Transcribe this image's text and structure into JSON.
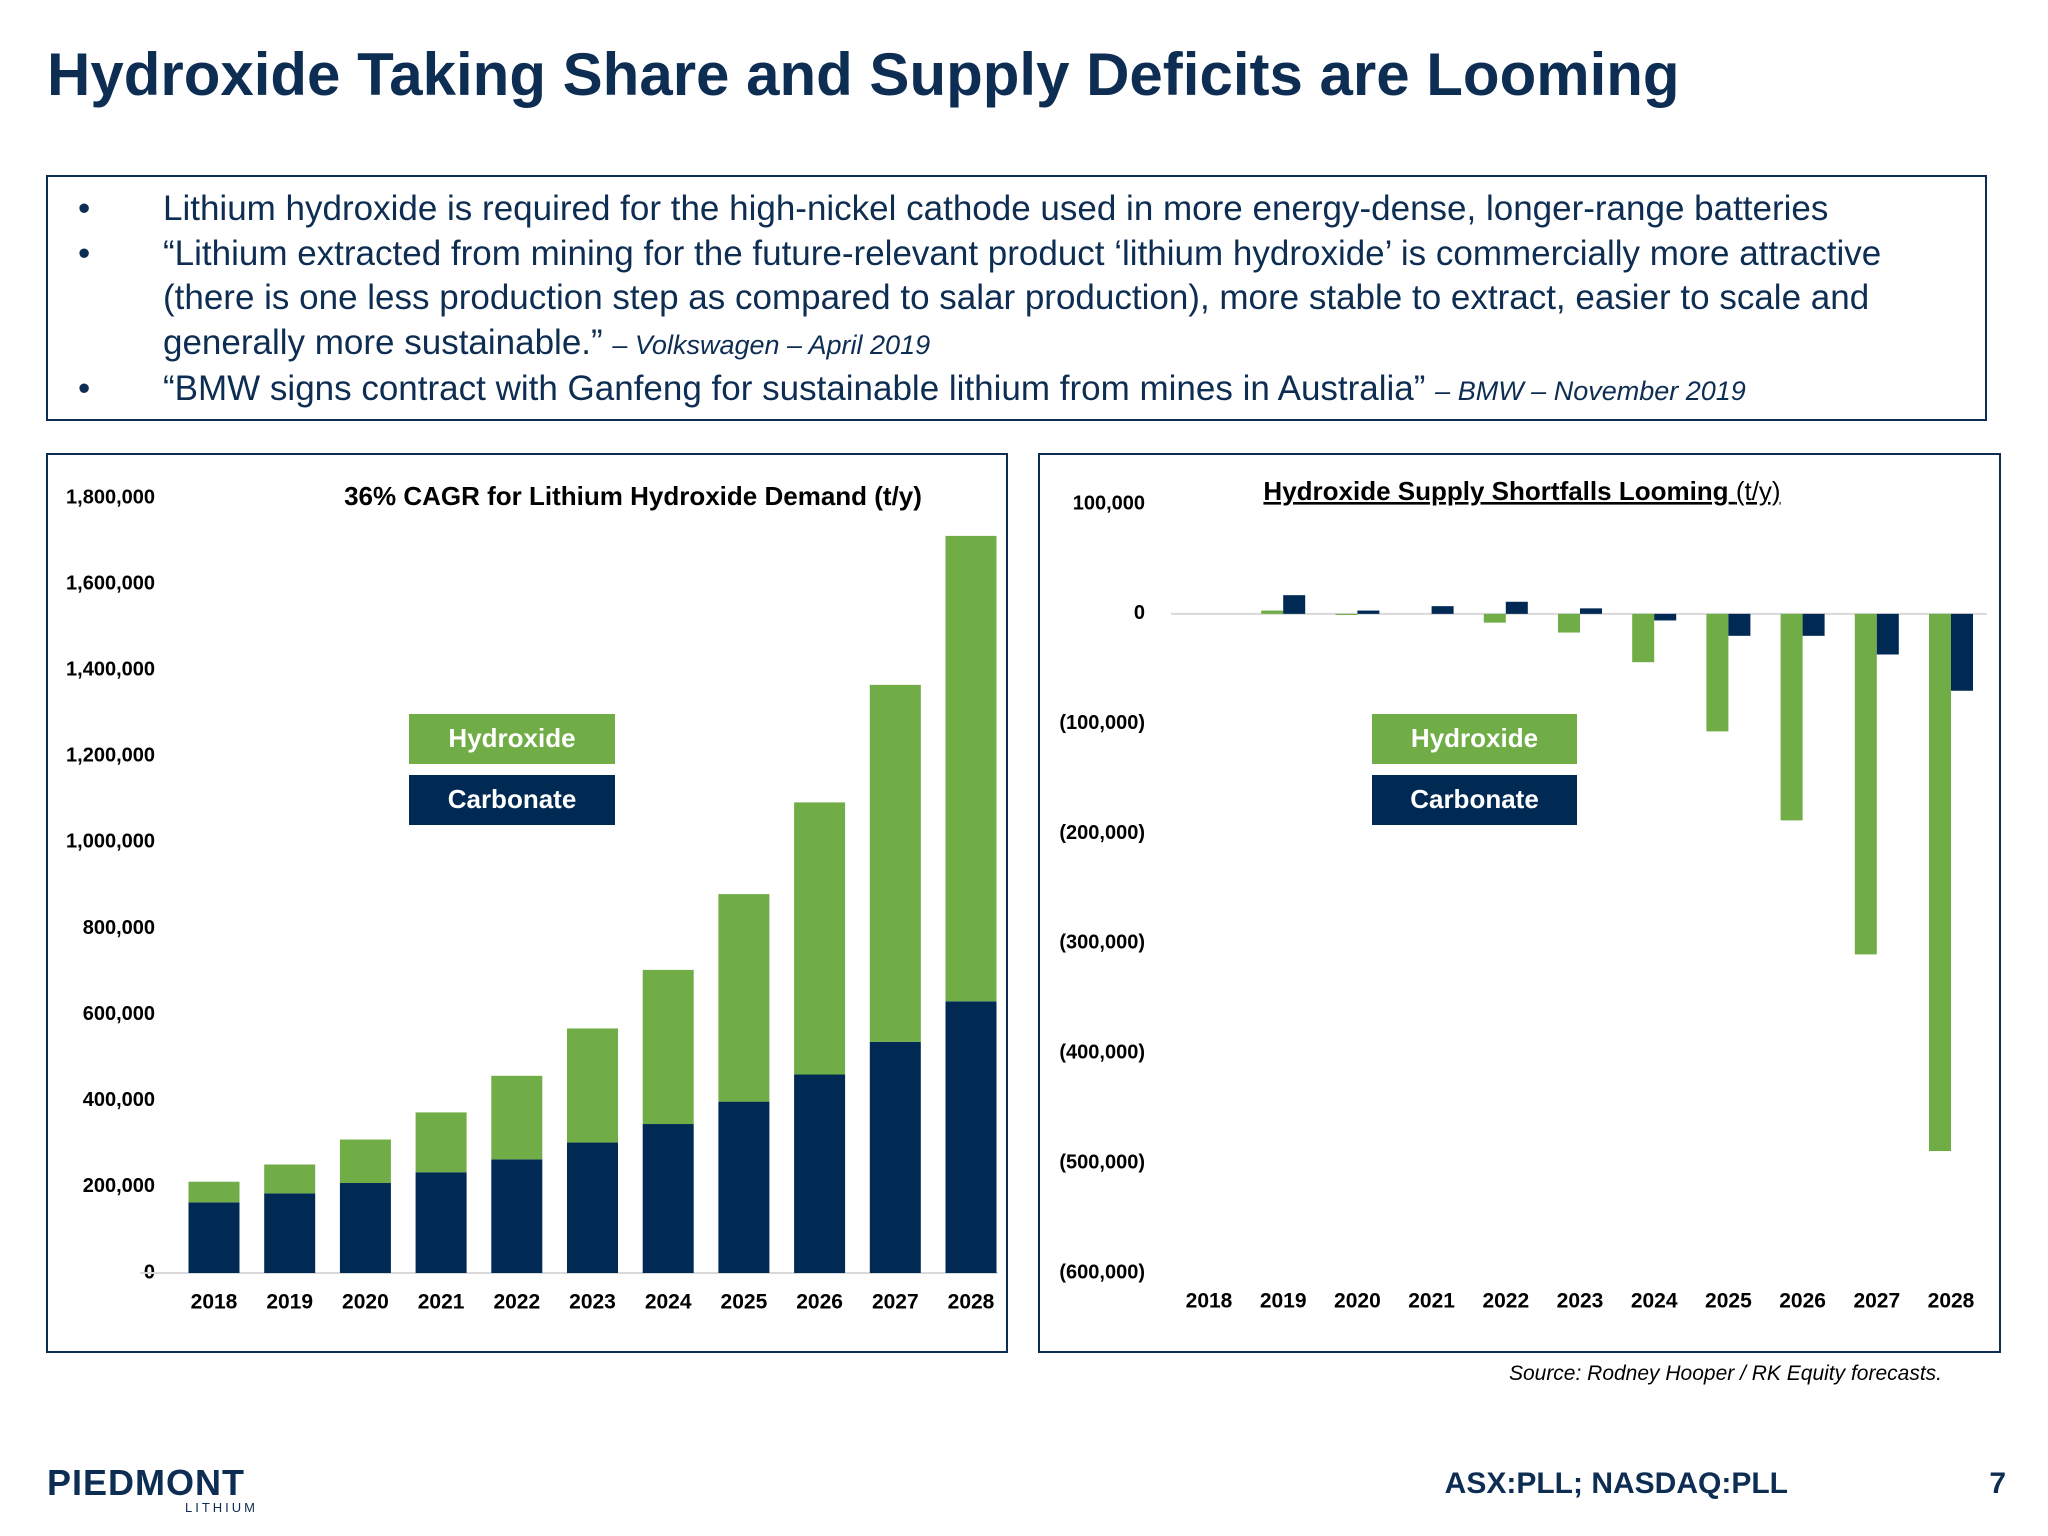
{
  "slide": {
    "title": "Hydroxide Taking Share and Supply Deficits are Looming",
    "bullets": [
      {
        "text": "Lithium hydroxide is required for the high-nickel cathode used in more energy-dense, longer-range batteries"
      },
      {
        "text": "“Lithium extracted from mining for the future-relevant product ‘lithium hydroxide’ is commercially more attractive (there is one less production step as compared to salar production), more stable to extract, easier to scale and generally more sustainable.”",
        "source": "– Volkswagen – April 2019"
      },
      {
        "text": "“BMW signs contract with Ganfeng for sustainable lithium from mines in Australia”",
        "source": "– BMW – November 2019"
      }
    ],
    "source_note": "Source: Rodney Hooper / RK Equity forecasts.",
    "logo": "PIEDMONT",
    "logo_sub": "LITHIUM",
    "ticker": "ASX:PLL; NASDAQ:PLL",
    "page_number": "7"
  },
  "chart_data": [
    {
      "type": "bar",
      "stacked": true,
      "title": "36% CAGR for Lithium Hydroxide Demand (t/y)",
      "categories": [
        "2018",
        "2019",
        "2020",
        "2021",
        "2022",
        "2023",
        "2024",
        "2025",
        "2026",
        "2027",
        "2028"
      ],
      "series": [
        {
          "name": "Hydroxide",
          "color": "#70ad47",
          "values": [
            48000,
            67000,
            101000,
            139000,
            194000,
            265000,
            358000,
            482000,
            632000,
            829000,
            1081000
          ]
        },
        {
          "name": "Carbonate",
          "color": "#002a54",
          "values": [
            164000,
            185000,
            209000,
            234000,
            264000,
            303000,
            346000,
            398000,
            461000,
            537000,
            631000
          ]
        }
      ],
      "ylim": [
        0,
        1800000
      ],
      "yticks": [
        0,
        {
          "value": 200000,
          "label": "200,000"
        },
        {
          "value": 400000,
          "label": "400,000"
        },
        {
          "value": 600000,
          "label": "600,000"
        },
        {
          "value": 800000,
          "label": "800,000"
        },
        {
          "value": 1000000,
          "label": "1,000,000"
        },
        {
          "value": 1200000,
          "label": "1,200,000"
        },
        {
          "value": 1400000,
          "label": "1,400,000"
        },
        {
          "value": 1600000,
          "label": "1,600,000"
        },
        {
          "value": 1800000,
          "label": "1,800,000"
        }
      ],
      "grid": false
    },
    {
      "type": "bar",
      "stacked": false,
      "title": "Hydroxide Supply Shortfalls Looming",
      "subtitle": "(t/y)",
      "categories": [
        "2018",
        "2019",
        "2020",
        "2021",
        "2022",
        "2023",
        "2024",
        "2025",
        "2026",
        "2027",
        "2028"
      ],
      "series": [
        {
          "name": "Hydroxide",
          "color": "#70ad47",
          "values": [
            0,
            3000,
            -1000,
            0,
            -8000,
            -17000,
            -44000,
            -107000,
            -188000,
            -310000,
            -489000
          ]
        },
        {
          "name": "Carbonate",
          "color": "#002a54",
          "values": [
            0,
            17000,
            3000,
            7000,
            11000,
            5000,
            -6000,
            -20000,
            -20000,
            -37000,
            -70000
          ]
        }
      ],
      "ylim": [
        -600000,
        100000
      ],
      "yticks": [
        {
          "value": -600000,
          "label": "(600,000)"
        },
        {
          "value": -500000,
          "label": "(500,000)"
        },
        {
          "value": -400000,
          "label": "(400,000)"
        },
        {
          "value": -300000,
          "label": "(300,000)"
        },
        {
          "value": -200000,
          "label": "(200,000)"
        },
        {
          "value": -100000,
          "label": "(100,000)"
        },
        0,
        {
          "value": 100000,
          "label": "100,000"
        }
      ],
      "negative_tick_color": "#e00000",
      "grid": false
    }
  ]
}
